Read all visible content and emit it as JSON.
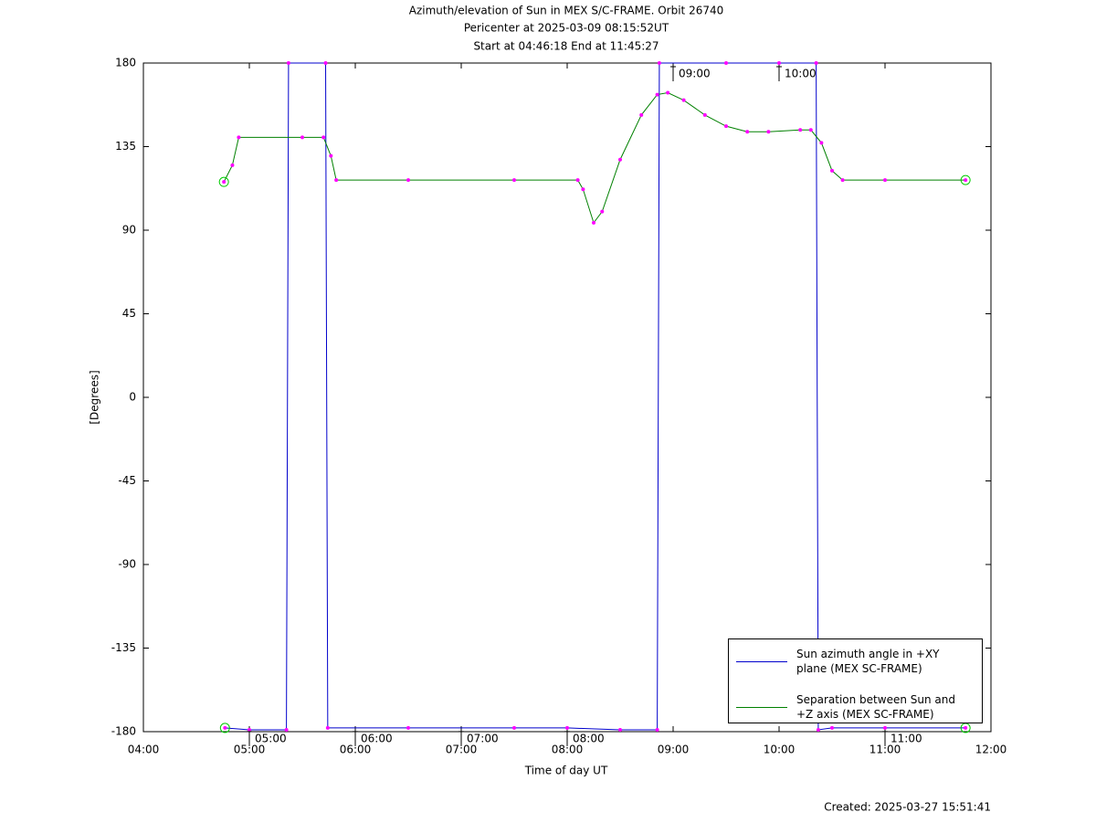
{
  "chart_data": {
    "type": "line",
    "title": "Azimuth/elevation of Sun in MEX S/C-FRAME.  Orbit 26740",
    "subtitle": [
      "Pericenter at 2025-03-09 08:15:52UT",
      "Start at 04:46:18 End at 11:45:27"
    ],
    "xlabel": "Time of day UT",
    "ylabel": "[Degrees]",
    "footnote": "Created: 2025-03-27 15:51:41",
    "xlim": [
      4,
      12
    ],
    "xticks": [
      {
        "value": 4,
        "label": "04:00"
      },
      {
        "value": 5,
        "label": "05:00"
      },
      {
        "value": 6,
        "label": "06:00"
      },
      {
        "value": 7,
        "label": "07:00"
      },
      {
        "value": 8,
        "label": "08:00"
      },
      {
        "value": 9,
        "label": "09:00"
      },
      {
        "value": 10,
        "label": "10:00"
      },
      {
        "value": 11,
        "label": "11:00"
      },
      {
        "value": 12,
        "label": "12:00"
      }
    ],
    "ylim": [
      -180,
      180
    ],
    "yticks": [
      -180,
      -135,
      -90,
      -45,
      0,
      45,
      90,
      135,
      180
    ],
    "grid": false,
    "legend": "lower right",
    "series": [
      {
        "name": "Sun azimuth angle in +XY plane (MEX SC-FRAME)",
        "color": "#0000cc",
        "x": [
          4.77,
          5.0,
          5.35,
          5.37,
          5.72,
          5.74,
          6.5,
          7.5,
          8.0,
          8.5,
          8.85,
          8.87,
          9.5,
          10.0,
          10.35,
          10.37,
          10.5,
          11.0,
          11.76
        ],
        "values": [
          -178,
          -179,
          -179,
          180,
          180,
          -178,
          -178,
          -178,
          -178,
          -179,
          -179,
          180,
          180,
          180,
          180,
          -179,
          -178,
          -178,
          -178
        ]
      },
      {
        "name": "Separation between Sun and +Z axis (MEX SC-FRAME)",
        "color": "#008000",
        "x": [
          4.76,
          4.84,
          4.9,
          5.5,
          5.7,
          5.77,
          5.82,
          6.5,
          7.5,
          8.1,
          8.15,
          8.25,
          8.33,
          8.5,
          8.7,
          8.85,
          8.95,
          9.1,
          9.3,
          9.5,
          9.7,
          9.9,
          10.2,
          10.3,
          10.4,
          10.5,
          10.6,
          11.0,
          11.76
        ],
        "values": [
          116,
          125,
          140,
          140,
          140,
          130,
          117,
          117,
          117,
          117,
          112,
          94,
          100,
          128,
          152,
          163,
          164,
          160,
          152,
          146,
          143,
          143,
          144,
          144,
          137,
          122,
          117,
          117,
          117
        ]
      }
    ],
    "annotations": [
      {
        "label": "05:00",
        "x": 5,
        "y": -178
      },
      {
        "label": "06:00",
        "x": 6,
        "y": -178
      },
      {
        "label": "07:00",
        "x": 7,
        "y": -178
      },
      {
        "label": "08:00",
        "x": 8,
        "y": -178
      },
      {
        "label": "09:00",
        "x": 9,
        "y": 180
      },
      {
        "label": "10:00",
        "x": 10,
        "y": 180
      },
      {
        "label": "11:00",
        "x": 11,
        "y": -178
      }
    ]
  }
}
